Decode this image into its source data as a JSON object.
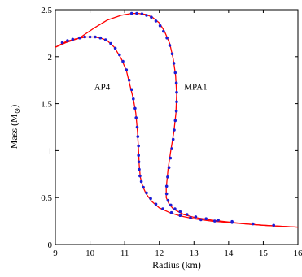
{
  "chart_data": {
    "type": "line",
    "title": "",
    "xlabel": "Radius (km)",
    "ylabel": "Mass (M",
    "ylabel_symbol": "⊙",
    "ylabel_close": ")",
    "xlim": [
      9,
      16
    ],
    "ylim": [
      0,
      2.5
    ],
    "xticks": [
      "9",
      "10",
      "11",
      "12",
      "13",
      "14",
      "15",
      "16"
    ],
    "yticks": [
      "0",
      "0.5",
      "1",
      "1.5",
      "2",
      "2.5"
    ],
    "grid": false,
    "line_color": "#ff0000",
    "marker_color": "#1c1cd6",
    "series": [
      {
        "name": "AP4",
        "curve": [
          [
            9.0,
            2.1
          ],
          [
            9.3,
            2.16
          ],
          [
            9.6,
            2.19
          ],
          [
            9.9,
            2.21
          ],
          [
            10.1,
            2.21
          ],
          [
            10.3,
            2.2
          ],
          [
            10.5,
            2.17
          ],
          [
            10.7,
            2.1
          ],
          [
            10.9,
            1.98
          ],
          [
            11.05,
            1.85
          ],
          [
            11.15,
            1.7
          ],
          [
            11.25,
            1.55
          ],
          [
            11.32,
            1.4
          ],
          [
            11.37,
            1.2
          ],
          [
            11.4,
            1.0
          ],
          [
            11.42,
            0.85
          ],
          [
            11.45,
            0.72
          ],
          [
            11.52,
            0.62
          ],
          [
            11.62,
            0.54
          ],
          [
            11.78,
            0.46
          ],
          [
            12.0,
            0.39
          ],
          [
            12.3,
            0.34
          ],
          [
            12.6,
            0.305
          ],
          [
            13.0,
            0.275
          ],
          [
            13.5,
            0.25
          ],
          [
            14.0,
            0.235
          ],
          [
            14.5,
            0.22
          ],
          [
            15.0,
            0.205
          ],
          [
            15.5,
            0.195
          ],
          [
            16.0,
            0.185
          ]
        ],
        "markers": [
          [
            9.2,
            2.15
          ],
          [
            9.35,
            2.17
          ],
          [
            9.5,
            2.185
          ],
          [
            9.7,
            2.2
          ],
          [
            9.85,
            2.21
          ],
          [
            10.0,
            2.21
          ],
          [
            10.15,
            2.21
          ],
          [
            10.3,
            2.2
          ],
          [
            10.45,
            2.18
          ],
          [
            10.6,
            2.14
          ],
          [
            10.73,
            2.09
          ],
          [
            10.85,
            2.02
          ],
          [
            10.95,
            1.95
          ],
          [
            11.05,
            1.86
          ],
          [
            11.13,
            1.75
          ],
          [
            11.2,
            1.65
          ],
          [
            11.25,
            1.55
          ],
          [
            11.3,
            1.45
          ],
          [
            11.33,
            1.35
          ],
          [
            11.36,
            1.25
          ],
          [
            11.38,
            1.15
          ],
          [
            11.4,
            1.05
          ],
          [
            11.4,
            0.95
          ],
          [
            11.41,
            0.88
          ],
          [
            11.42,
            0.8
          ],
          [
            11.44,
            0.73
          ],
          [
            11.48,
            0.67
          ],
          [
            11.54,
            0.61
          ],
          [
            11.63,
            0.55
          ],
          [
            11.75,
            0.49
          ],
          [
            11.9,
            0.43
          ],
          [
            12.1,
            0.38
          ],
          [
            12.35,
            0.34
          ],
          [
            12.6,
            0.31
          ],
          [
            12.9,
            0.285
          ],
          [
            13.2,
            0.265
          ],
          [
            13.6,
            0.25
          ],
          [
            14.1,
            0.235
          ],
          [
            14.7,
            0.22
          ],
          [
            15.3,
            0.205
          ]
        ]
      },
      {
        "name": "MPA1",
        "curve": [
          [
            9.0,
            2.1
          ],
          [
            9.3,
            2.15
          ],
          [
            9.7,
            2.2
          ],
          [
            10.1,
            2.3
          ],
          [
            10.5,
            2.39
          ],
          [
            10.9,
            2.44
          ],
          [
            11.2,
            2.46
          ],
          [
            11.4,
            2.46
          ],
          [
            11.6,
            2.45
          ],
          [
            11.8,
            2.42
          ],
          [
            12.0,
            2.36
          ],
          [
            12.15,
            2.27
          ],
          [
            12.3,
            2.14
          ],
          [
            12.4,
            1.98
          ],
          [
            12.47,
            1.8
          ],
          [
            12.5,
            1.6
          ],
          [
            12.48,
            1.4
          ],
          [
            12.42,
            1.2
          ],
          [
            12.33,
            1.0
          ],
          [
            12.25,
            0.8
          ],
          [
            12.2,
            0.6
          ],
          [
            12.2,
            0.5
          ],
          [
            12.27,
            0.44
          ],
          [
            12.4,
            0.38
          ],
          [
            12.7,
            0.32
          ],
          [
            13.0,
            0.29
          ],
          [
            13.5,
            0.26
          ],
          [
            14.0,
            0.24
          ],
          [
            14.5,
            0.22
          ],
          [
            15.0,
            0.205
          ],
          [
            15.5,
            0.195
          ],
          [
            16.0,
            0.185
          ]
        ],
        "markers": [
          [
            11.2,
            2.46
          ],
          [
            11.35,
            2.46
          ],
          [
            11.5,
            2.455
          ],
          [
            11.63,
            2.44
          ],
          [
            11.77,
            2.42
          ],
          [
            11.9,
            2.38
          ],
          [
            12.02,
            2.33
          ],
          [
            12.12,
            2.27
          ],
          [
            12.22,
            2.2
          ],
          [
            12.3,
            2.12
          ],
          [
            12.37,
            2.03
          ],
          [
            12.42,
            1.93
          ],
          [
            12.46,
            1.83
          ],
          [
            12.49,
            1.72
          ],
          [
            12.5,
            1.62
          ],
          [
            12.5,
            1.52
          ],
          [
            12.49,
            1.42
          ],
          [
            12.46,
            1.32
          ],
          [
            12.43,
            1.22
          ],
          [
            12.4,
            1.12
          ],
          [
            12.36,
            1.02
          ],
          [
            12.32,
            0.92
          ],
          [
            12.28,
            0.82
          ],
          [
            12.24,
            0.72
          ],
          [
            12.21,
            0.62
          ],
          [
            12.21,
            0.54
          ],
          [
            12.25,
            0.47
          ],
          [
            12.33,
            0.42
          ],
          [
            12.45,
            0.38
          ],
          [
            12.6,
            0.35
          ],
          [
            12.8,
            0.32
          ],
          [
            13.05,
            0.295
          ],
          [
            13.35,
            0.275
          ],
          [
            13.7,
            0.26
          ],
          [
            14.1,
            0.245
          ]
        ]
      }
    ]
  },
  "labels": {
    "ap4": {
      "text": "AP4",
      "x": 10.35,
      "y": 1.65
    },
    "mpa1": {
      "text": "MPA1",
      "x": 13.05,
      "y": 1.65
    }
  }
}
